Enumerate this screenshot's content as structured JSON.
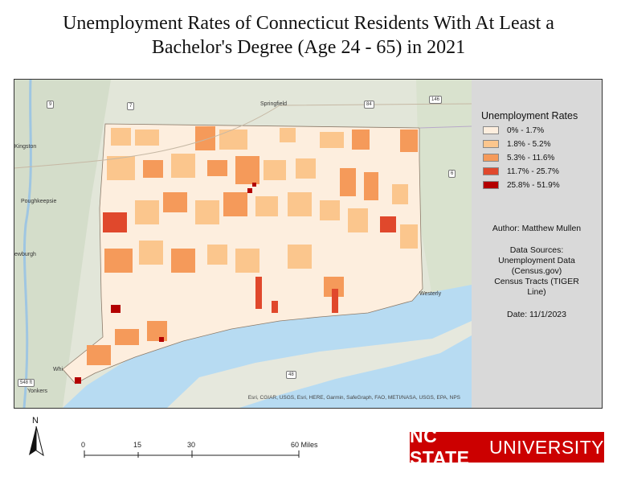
{
  "title_line1": "Unemployment Rates of Connecticut Residents With At Least a",
  "title_line2": "Bachelor's Degree (Age 24 - 65) in 2021",
  "legend": {
    "title": "Unemployment Rates",
    "items": [
      {
        "label": "0% - 1.7%",
        "color": "#fdeede"
      },
      {
        "label": "1.8% - 5.2%",
        "color": "#fbc68d"
      },
      {
        "label": "5.3% - 11.6%",
        "color": "#f59a5a"
      },
      {
        "label": "11.7% - 25.7%",
        "color": "#e0482c"
      },
      {
        "label": "25.8% - 51.9%",
        "color": "#b30000"
      }
    ]
  },
  "author": "Author: Matthew Mullen",
  "sources": [
    "Data Sources:",
    "Unemployment Data",
    "(Census.gov)",
    "Census Tracts (TIGER",
    "Line)"
  ],
  "date": "Date: 11/1/2023",
  "places": {
    "springfield": "Springfield",
    "kingston": "Kingston",
    "poughkeepsie": "Poughkeepsie",
    "newburgh": "ewburgh",
    "westerly": "Westerly",
    "yonkers": "Yonkers",
    "white_plains": "Whi"
  },
  "shields": {
    "i9": "9",
    "r7": "7",
    "i84": "84",
    "r146": "146",
    "r6": "6",
    "r48": "48",
    "r548": "548 ft"
  },
  "attribution": "Esri, CGIAR, USGS, Esri, HERE, Garmin, SafeGraph, FAO, METI/NASA, USGS, EPA, NPS",
  "north_label": "N",
  "scale": {
    "ticks": [
      "0",
      "15",
      "30",
      "60 Miles"
    ]
  },
  "logo": {
    "bold": "NC STATE",
    "rest": "UNIVERSITY"
  }
}
